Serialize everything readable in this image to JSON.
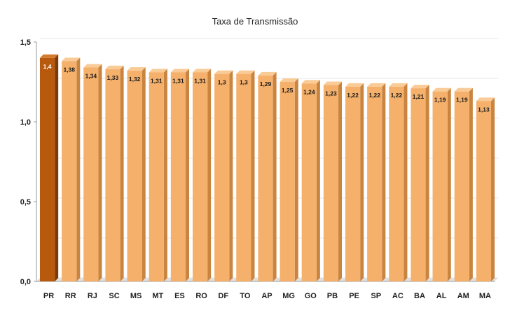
{
  "chart_data": {
    "type": "bar",
    "title": "Taxa de Transmissão",
    "xlabel": "",
    "ylabel": "",
    "categories": [
      "PR",
      "RR",
      "RJ",
      "SC",
      "MS",
      "MT",
      "ES",
      "RO",
      "DF",
      "TO",
      "AP",
      "MG",
      "GO",
      "PB",
      "PE",
      "SP",
      "AC",
      "BA",
      "AL",
      "AM",
      "MA"
    ],
    "values": [
      1.4,
      1.38,
      1.34,
      1.33,
      1.32,
      1.31,
      1.31,
      1.31,
      1.3,
      1.3,
      1.29,
      1.25,
      1.24,
      1.23,
      1.22,
      1.22,
      1.22,
      1.21,
      1.19,
      1.19,
      1.13
    ],
    "value_labels": [
      "1,4",
      "1,38",
      "1,34",
      "1,33",
      "1,32",
      "1,31",
      "1,31",
      "1,31",
      "1,3",
      "1,3",
      "1,29",
      "1,25",
      "1,24",
      "1,23",
      "1,22",
      "1,22",
      "1,22",
      "1,21",
      "1,19",
      "1,19",
      "1,13"
    ],
    "ylim": [
      0,
      1.5
    ],
    "yticks": [
      0,
      0.5,
      1.0,
      1.5
    ],
    "ytick_labels": [
      "0,0",
      "0,5",
      "1,0",
      "1,5"
    ],
    "grid": true,
    "legend": "none",
    "highlight_index": 0,
    "colors": {
      "bar_front": "#F5B06B",
      "bar_side": "#C98440",
      "bar_top": "#F9CB96",
      "highlight_front": "#B85A0E",
      "highlight_side": "#7E3A06",
      "highlight_top": "#D47A2C",
      "grid": "#E4E4E4",
      "axis": "#9A9A9A",
      "floor": "#E0E0E0"
    }
  }
}
